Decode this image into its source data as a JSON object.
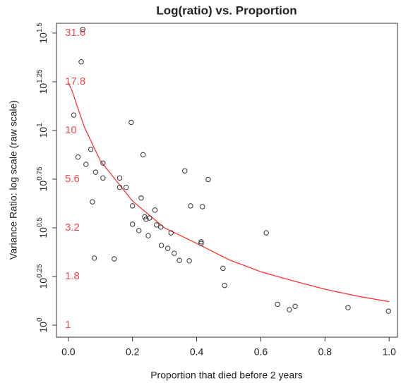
{
  "chart_data": {
    "type": "scatter",
    "title": "Log(ratio) vs. Proportion",
    "x_label": "Proportion that died before 2 years",
    "y_label": "Variance Ratio: log scale (raw scale)",
    "log_y": true,
    "point_color": "#333333",
    "xlim": [
      -0.037,
      1.026
    ],
    "ylim": [
      0.868,
      35.5
    ],
    "xticks": [
      {
        "value": 0,
        "label": "0.0"
      },
      0.2,
      0.4,
      0.6,
      0.8,
      {
        "value": 1,
        "label": "1.0"
      }
    ],
    "yticks": [
      {
        "value": 1,
        "label": "10^0"
      },
      {
        "value": 1.778,
        "label": "10^0.25"
      },
      {
        "value": 3.162,
        "label": "10^0.5"
      },
      {
        "value": 5.623,
        "label": "10^0.75"
      },
      {
        "value": 10,
        "label": "10^1"
      },
      {
        "value": 17.78,
        "label": "10^1.25"
      },
      {
        "value": 31.62,
        "label": "10^1.5"
      }
    ],
    "ytick_annotations": [
      "1",
      "1.8",
      "3.2",
      "5.6",
      "10",
      "17.8",
      "31.6"
    ],
    "annotation_color": "#f24b4b",
    "x": [
      0.045,
      0.04,
      0.017,
      0.03,
      0.07,
      0.055,
      0.085,
      0.108,
      0.108,
      0.16,
      0.16,
      0.18,
      0.075,
      0.196,
      0.233,
      0.227,
      0.2,
      0.2,
      0.22,
      0.238,
      0.242,
      0.253,
      0.249,
      0.27,
      0.275,
      0.288,
      0.29,
      0.31,
      0.32,
      0.33,
      0.346,
      0.377,
      0.363,
      0.381,
      0.414,
      0.414,
      0.418,
      0.436,
      0.482,
      0.487,
      0.081,
      0.143,
      0.617,
      0.652,
      0.689,
      0.707,
      0.872,
      0.998
    ],
    "values": [
      33,
      22.5,
      12.0,
      7.3,
      8.0,
      6.7,
      6.1,
      6.8,
      5.7,
      5.7,
      5.1,
      5.1,
      4.3,
      11.0,
      7.5,
      4.5,
      4.1,
      3.3,
      3.06,
      3.6,
      3.5,
      3.55,
      2.88,
      3.9,
      3.27,
      3.19,
      2.57,
      2.48,
      2.98,
      2.34,
      2.15,
      2.14,
      6.2,
      4.1,
      2.68,
      2.63,
      4.06,
      5.6,
      1.96,
      1.6,
      2.21,
      2.19,
      2.98,
      1.28,
      1.2,
      1.25,
      1.23,
      1.18
    ],
    "fit": {
      "color": "#ff3333",
      "x": [
        0.0,
        0.01,
        0.05,
        0.1,
        0.2,
        0.3,
        0.4,
        0.5,
        0.6,
        0.7,
        0.8,
        0.9,
        1.0
      ],
      "values": [
        17.5,
        16.2,
        10.4,
        6.98,
        4.34,
        3.16,
        2.63,
        2.17,
        1.88,
        1.69,
        1.53,
        1.41,
        1.32
      ]
    }
  }
}
